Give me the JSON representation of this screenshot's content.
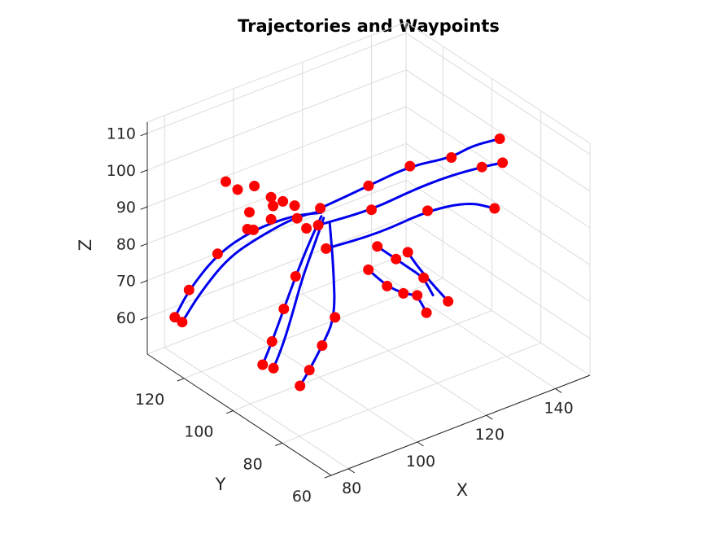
{
  "chart_data": {
    "type": "line",
    "subtype": "3d-line-with-markers",
    "title": "Trajectories and Waypoints",
    "xlabel": "X",
    "ylabel": "Y",
    "zlabel": "Z",
    "xlim": [
      75,
      150
    ],
    "ylim": [
      60,
      135
    ],
    "zlim": [
      50,
      113
    ],
    "xticks": [
      80,
      100,
      120,
      140
    ],
    "yticks": [
      60,
      80,
      100,
      120
    ],
    "zticks": [
      60,
      70,
      80,
      90,
      100,
      110
    ],
    "grid": true,
    "colors": {
      "trajectory": "#0000ee",
      "waypoint": "#ff0000"
    },
    "series": [
      {
        "x": [
          78,
          80,
          84,
          88,
          93,
          97
        ],
        "y": [
          128,
          125,
          119,
          110,
          101,
          95
        ],
        "z": [
          62,
          70,
          81,
          90,
          96,
          98
        ]
      },
      {
        "x": [
          78,
          81,
          85,
          89,
          93,
          97
        ],
        "y": [
          125,
          122,
          116,
          108,
          100,
          94
        ],
        "z": [
          62,
          70,
          81,
          89,
          96,
          99
        ]
      },
      {
        "x": [
          85,
          87,
          89,
          91,
          94,
          97
        ],
        "y": [
          102,
          101,
          99,
          97,
          96,
          95
        ],
        "z": [
          58,
          64,
          73,
          82,
          90,
          97
        ]
      },
      {
        "x": [
          86,
          88,
          90,
          92,
          95,
          97
        ],
        "y": [
          99,
          98,
          97,
          96,
          95,
          94
        ],
        "z": [
          58,
          64,
          72,
          81,
          90,
          97
        ]
      },
      {
        "x": [
          88,
          90,
          93,
          96,
          97,
          98
        ],
        "y": [
          91,
          90,
          89,
          88,
          90,
          93
        ],
        "z": [
          56,
          60,
          66,
          73,
          85,
          96
        ]
      },
      {
        "x": [
          100,
          104,
          108,
          112,
          114
        ],
        "y": [
          80,
          78,
          77,
          77,
          76
        ],
        "z": [
          88,
          83,
          80,
          78,
          73
        ]
      },
      {
        "x": [
          104,
          108,
          112,
          116,
          118
        ],
        "y": [
          82,
          80,
          80,
          80,
          79
        ],
        "z": [
          92,
          88,
          84,
          80,
          75
        ]
      },
      {
        "x": [
          110,
          112,
          114,
          115,
          116
        ],
        "y": [
          78,
          77,
          74,
          72,
          70
        ],
        "z": [
          90,
          86,
          82,
          80,
          78
        ]
      },
      {
        "x": [
          96,
          110,
          122,
          134,
          140,
          148
        ],
        "y": [
          94,
          94,
          94,
          94,
          94,
          94
        ],
        "z": [
          100,
          101,
          102,
          100,
          101,
          100
        ]
      },
      {
        "x": [
          94,
          108,
          120,
          130,
          140,
          146
        ],
        "y": [
          92,
          90,
          90,
          90,
          90,
          90
        ],
        "z": [
          97,
          97,
          98,
          98,
          97,
          96
        ]
      },
      {
        "x": [
          92,
          106,
          120,
          132,
          138
        ],
        "y": [
          86,
          84,
          84,
          84,
          82
        ],
        "z": [
          94,
          94,
          95,
          93,
          90
        ]
      }
    ],
    "waypoints": [
      {
        "x": 78,
        "y": 128,
        "z": 62
      },
      {
        "x": 78,
        "y": 125,
        "z": 62
      },
      {
        "x": 80,
        "y": 125,
        "z": 70
      },
      {
        "x": 84,
        "y": 119,
        "z": 81
      },
      {
        "x": 88,
        "y": 110,
        "z": 90
      },
      {
        "x": 85,
        "y": 102,
        "z": 58
      },
      {
        "x": 86,
        "y": 99,
        "z": 58
      },
      {
        "x": 87,
        "y": 101,
        "z": 64
      },
      {
        "x": 89,
        "y": 99,
        "z": 73
      },
      {
        "x": 91,
        "y": 97,
        "z": 82
      },
      {
        "x": 88,
        "y": 91,
        "z": 56
      },
      {
        "x": 90,
        "y": 90,
        "z": 60
      },
      {
        "x": 93,
        "y": 89,
        "z": 66
      },
      {
        "x": 96,
        "y": 88,
        "z": 73
      },
      {
        "x": 100,
        "y": 80,
        "z": 88
      },
      {
        "x": 104,
        "y": 78,
        "z": 83
      },
      {
        "x": 108,
        "y": 77,
        "z": 80
      },
      {
        "x": 112,
        "y": 77,
        "z": 78
      },
      {
        "x": 114,
        "y": 76,
        "z": 73
      },
      {
        "x": 104,
        "y": 82,
        "z": 92
      },
      {
        "x": 108,
        "y": 80,
        "z": 88
      },
      {
        "x": 116,
        "y": 80,
        "z": 80
      },
      {
        "x": 110,
        "y": 78,
        "z": 90
      },
      {
        "x": 116,
        "y": 70,
        "z": 78
      },
      {
        "x": 110,
        "y": 94,
        "z": 101
      },
      {
        "x": 122,
        "y": 94,
        "z": 102
      },
      {
        "x": 134,
        "y": 94,
        "z": 100
      },
      {
        "x": 148,
        "y": 94,
        "z": 100
      },
      {
        "x": 108,
        "y": 90,
        "z": 97
      },
      {
        "x": 140,
        "y": 90,
        "z": 97
      },
      {
        "x": 146,
        "y": 90,
        "z": 96
      },
      {
        "x": 120,
        "y": 84,
        "z": 95
      },
      {
        "x": 138,
        "y": 82,
        "z": 90
      },
      {
        "x": 96,
        "y": 94,
        "z": 100
      },
      {
        "x": 94,
        "y": 92,
        "z": 97
      },
      {
        "x": 92,
        "y": 86,
        "z": 94
      },
      {
        "x": 80,
        "y": 110,
        "z": 106
      },
      {
        "x": 82,
        "y": 108,
        "z": 104
      },
      {
        "x": 84,
        "y": 104,
        "z": 106
      },
      {
        "x": 86,
        "y": 100,
        "z": 104
      },
      {
        "x": 88,
        "y": 98,
        "z": 103
      },
      {
        "x": 90,
        "y": 96,
        "z": 102
      },
      {
        "x": 82,
        "y": 104,
        "z": 95
      },
      {
        "x": 86,
        "y": 100,
        "z": 98
      },
      {
        "x": 90,
        "y": 95,
        "z": 99
      },
      {
        "x": 92,
        "y": 94,
        "z": 96
      },
      {
        "x": 84,
        "y": 106,
        "z": 98
      },
      {
        "x": 88,
        "y": 102,
        "z": 100
      }
    ]
  }
}
